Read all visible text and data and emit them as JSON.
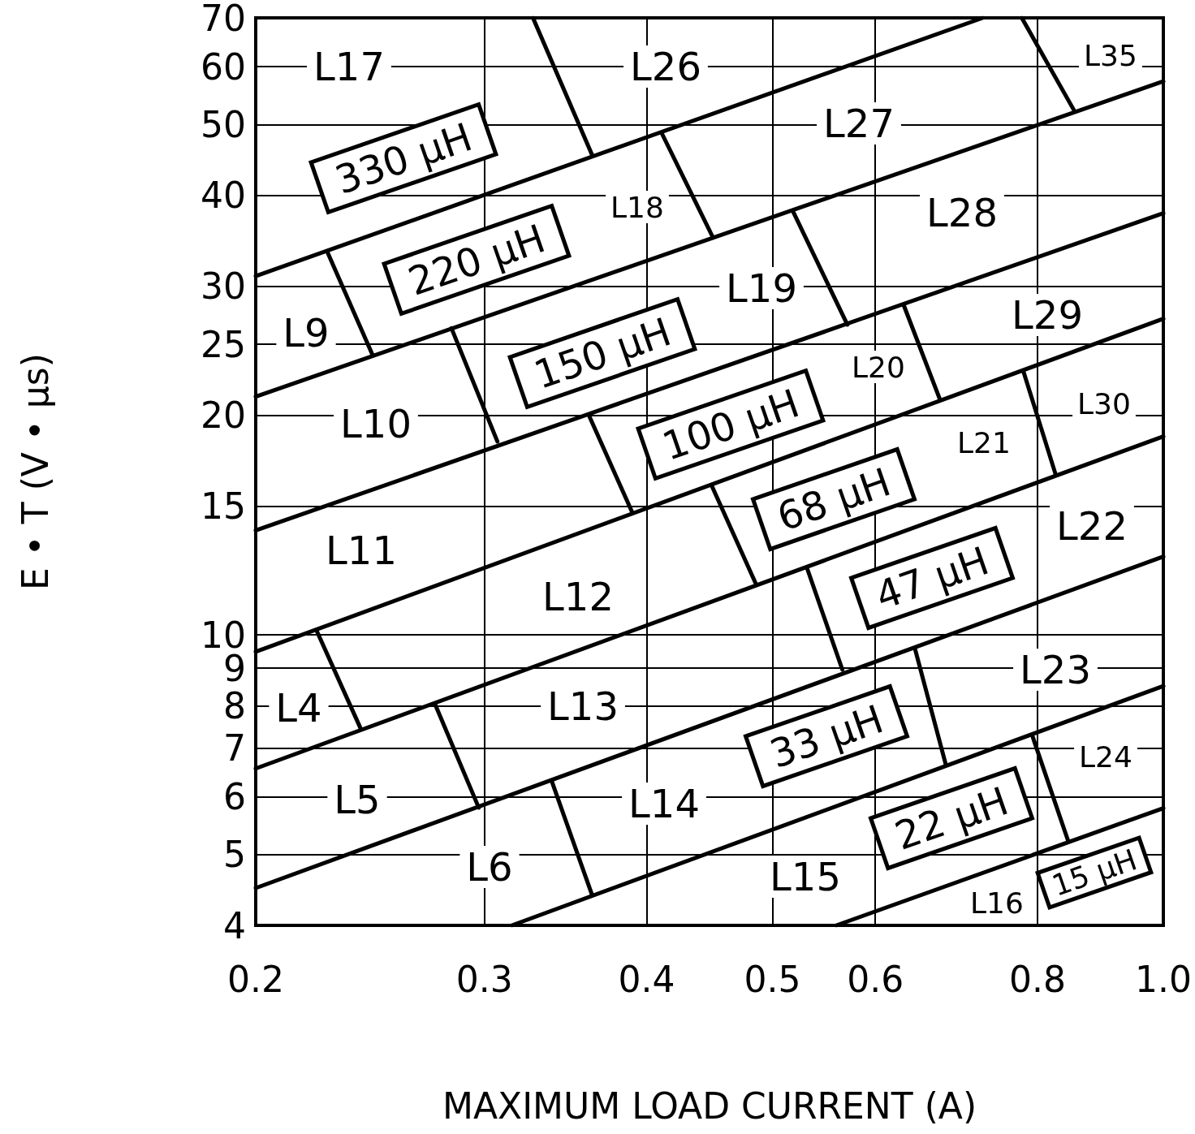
{
  "chart_data": {
    "type": "line",
    "xlabel": "MAXIMUM LOAD CURRENT (A)",
    "ylabel": "E • T (V • μs)",
    "log": "xy",
    "grid": true,
    "marker": "none",
    "line_style": "solid",
    "xlim": [
      0.2,
      1.0
    ],
    "xticks": [
      0.2,
      0.3,
      0.4,
      0.5,
      0.6,
      0.8,
      {
        "value": 1.0,
        "label": "1.0"
      }
    ],
    "ylim": [
      4,
      70
    ],
    "yticks": [
      4,
      5,
      6,
      7,
      8,
      9,
      10,
      15,
      20,
      25,
      30,
      40,
      50,
      60,
      70
    ],
    "series": [
      {
        "color": "#000000",
        "x": [
          0.2,
          0.726
        ],
        "values": [
          31.0,
          70
        ]
      },
      {
        "color": "#000000",
        "x": [
          0.2,
          1.0
        ],
        "values": [
          21.2,
          57.3
        ]
      },
      {
        "color": "#000000",
        "x": [
          0.2,
          1.0
        ],
        "values": [
          13.9,
          37.8
        ]
      },
      {
        "color": "#000000",
        "x": [
          0.2,
          1.0
        ],
        "values": [
          9.48,
          27.1
        ]
      },
      {
        "color": "#000000",
        "x": [
          0.2,
          1.0
        ],
        "values": [
          6.56,
          18.7
        ]
      },
      {
        "color": "#000000",
        "x": [
          0.2,
          1.0
        ],
        "values": [
          4.5,
          12.8
        ]
      },
      {
        "color": "#000000",
        "x": [
          0.315,
          1.0
        ],
        "values": [
          4,
          8.51
        ]
      },
      {
        "color": "#000000",
        "x": [
          0.56,
          1.0
        ],
        "values": [
          4,
          5.79
        ]
      },
      {
        "color": "#000000",
        "x": [
          0.327,
          0.363
        ],
        "values": [
          70,
          45.5
        ]
      },
      {
        "color": "#000000",
        "x": [
          0.778,
          0.853
        ],
        "values": [
          70,
          52.4
        ]
      },
      {
        "color": "#000000",
        "x": [
          0.227,
          0.246
        ],
        "values": [
          33.5,
          24.2
        ]
      },
      {
        "color": "#000000",
        "x": [
          0.411,
          0.45
        ],
        "values": [
          48.6,
          35.0
        ]
      },
      {
        "color": "#000000",
        "x": [
          0.283,
          0.307
        ],
        "values": [
          26.3,
          18.4
        ]
      },
      {
        "color": "#000000",
        "x": [
          0.519,
          0.571
        ],
        "values": [
          37.9,
          26.6
        ]
      },
      {
        "color": "#000000",
        "x": [
          0.361,
          0.39
        ],
        "values": [
          20.0,
          14.7
        ]
      },
      {
        "color": "#000000",
        "x": [
          0.631,
          0.673
        ],
        "values": [
          28.3,
          21.0
        ]
      },
      {
        "color": "#000000",
        "x": [
          0.449,
          0.486
        ],
        "values": [
          16.0,
          11.7
        ]
      },
      {
        "color": "#000000",
        "x": [
          0.78,
          0.826
        ],
        "values": [
          23.0,
          16.6
        ]
      },
      {
        "color": "#000000",
        "x": [
          0.223,
          0.241
        ],
        "values": [
          10.1,
          7.43
        ]
      },
      {
        "color": "#000000",
        "x": [
          0.532,
          0.566
        ],
        "values": [
          12.3,
          8.96
        ]
      },
      {
        "color": "#000000",
        "x": [
          0.275,
          0.297
        ],
        "values": [
          8.02,
          5.8
        ]
      },
      {
        "color": "#000000",
        "x": [
          0.644,
          0.68
        ],
        "values": [
          9.55,
          6.64
        ]
      },
      {
        "color": "#000000",
        "x": [
          0.338,
          0.363
        ],
        "values": [
          6.31,
          4.41
        ]
      },
      {
        "color": "#000000",
        "x": [
          0.793,
          0.845
        ],
        "values": [
          7.26,
          5.21
        ]
      }
    ],
    "annotations": [
      "L17",
      "L26",
      "L35",
      "L27",
      "L18",
      "L28",
      "L9",
      "L19",
      "L29",
      "L20",
      "L10",
      "L30",
      "L21",
      "L22",
      "L11",
      "L12",
      "L4",
      "L13",
      "L23",
      "L24",
      "L5",
      "L14",
      "L6",
      "L15",
      "L16",
      "330 μH",
      "220 μH",
      "150 μH",
      "100 μH",
      "68 μH",
      "47 μH",
      "33 μH",
      "22 μH",
      "15 μH"
    ]
  }
}
